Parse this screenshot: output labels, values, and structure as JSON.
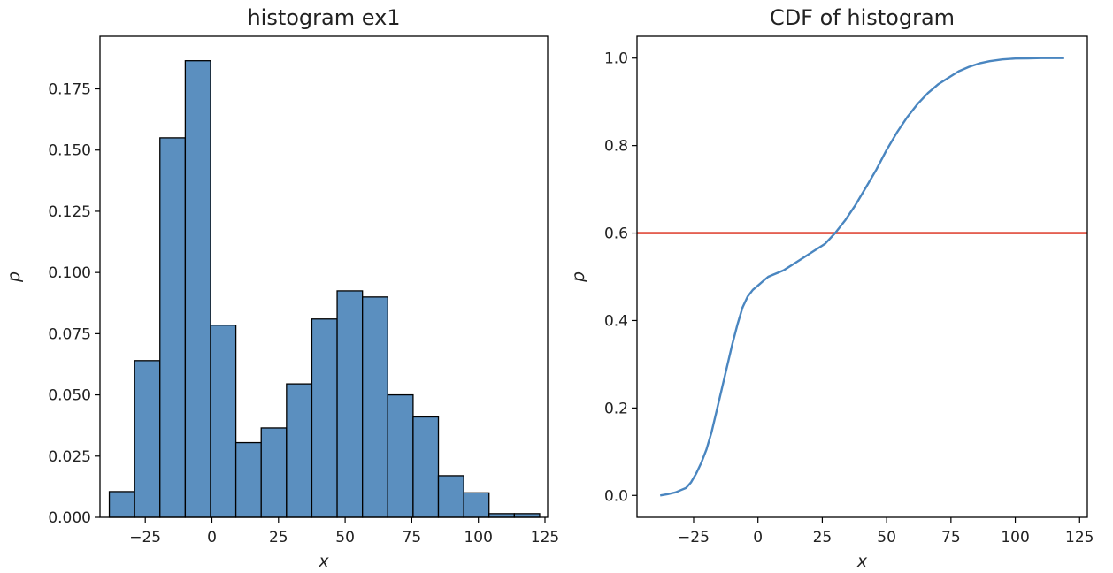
{
  "chart_data": [
    {
      "type": "bar",
      "title": "histogram ex1",
      "xlabel": "x",
      "ylabel": "p",
      "xlim": [
        -42,
        126
      ],
      "ylim": [
        0,
        0.1965
      ],
      "xticks": [
        -25,
        0,
        25,
        50,
        75,
        100,
        125
      ],
      "xtick_labels": [
        "−25",
        "0",
        "25",
        "50",
        "75",
        "100",
        "125"
      ],
      "yticks": [
        0,
        0.025,
        0.05,
        0.075,
        0.1,
        0.125,
        0.15,
        0.175
      ],
      "ytick_labels": [
        "0.000",
        "0.025",
        "0.050",
        "0.075",
        "0.100",
        "0.125",
        "0.150",
        "0.175"
      ],
      "grid": false,
      "bar_color": "#5b8fbf",
      "edge_color": "#000000",
      "bins": [
        {
          "x0": -38.5,
          "x1": -29.0,
          "value": 0.0105
        },
        {
          "x0": -29.0,
          "x1": -19.5,
          "value": 0.064
        },
        {
          "x0": -19.5,
          "x1": -10.0,
          "value": 0.155
        },
        {
          "x0": -10.0,
          "x1": -0.5,
          "value": 0.1865
        },
        {
          "x0": -0.5,
          "x1": 9.0,
          "value": 0.0785
        },
        {
          "x0": 9.0,
          "x1": 18.5,
          "value": 0.0305
        },
        {
          "x0": 18.5,
          "x1": 28.0,
          "value": 0.0365
        },
        {
          "x0": 28.0,
          "x1": 37.5,
          "value": 0.0545
        },
        {
          "x0": 37.5,
          "x1": 47.0,
          "value": 0.081
        },
        {
          "x0": 47.0,
          "x1": 56.5,
          "value": 0.0925
        },
        {
          "x0": 56.5,
          "x1": 66.0,
          "value": 0.09
        },
        {
          "x0": 66.0,
          "x1": 75.5,
          "value": 0.05
        },
        {
          "x0": 75.5,
          "x1": 85.0,
          "value": 0.041
        },
        {
          "x0": 85.0,
          "x1": 94.5,
          "value": 0.017
        },
        {
          "x0": 94.5,
          "x1": 104.0,
          "value": 0.01
        },
        {
          "x0": 104.0,
          "x1": 113.5,
          "value": 0.0015
        },
        {
          "x0": 113.5,
          "x1": 123.0,
          "value": 0.0015
        }
      ]
    },
    {
      "type": "line",
      "title": "CDF of histogram",
      "xlabel": "x",
      "ylabel": "p",
      "xlim": [
        -47,
        128
      ],
      "ylim": [
        -0.05,
        1.05
      ],
      "xticks": [
        -25,
        0,
        25,
        50,
        75,
        100,
        125
      ],
      "xtick_labels": [
        "−25",
        "0",
        "25",
        "50",
        "75",
        "100",
        "125"
      ],
      "yticks": [
        0,
        0.2,
        0.4,
        0.6,
        0.8,
        1.0
      ],
      "ytick_labels": [
        "0.0",
        "0.2",
        "0.4",
        "0.6",
        "0.8",
        "1.0"
      ],
      "grid": false,
      "line_color": "#4a86c0",
      "hline": {
        "y": 0.6,
        "color": "#e04a3a"
      },
      "x": [
        -38,
        -35,
        -32,
        -30,
        -28,
        -26,
        -24,
        -22,
        -20,
        -18,
        -16,
        -14,
        -12,
        -10,
        -8,
        -6,
        -4,
        -2,
        0,
        2,
        4,
        6,
        8,
        10,
        14,
        18,
        22,
        26,
        30,
        34,
        38,
        42,
        46,
        50,
        54,
        58,
        62,
        66,
        70,
        74,
        78,
        82,
        86,
        90,
        95,
        100,
        105,
        110,
        115,
        119
      ],
      "y": [
        0.0,
        0.003,
        0.007,
        0.012,
        0.017,
        0.03,
        0.05,
        0.075,
        0.105,
        0.145,
        0.195,
        0.245,
        0.295,
        0.345,
        0.39,
        0.43,
        0.455,
        0.47,
        0.48,
        0.49,
        0.5,
        0.505,
        0.51,
        0.515,
        0.53,
        0.545,
        0.56,
        0.575,
        0.6,
        0.63,
        0.665,
        0.705,
        0.745,
        0.79,
        0.83,
        0.865,
        0.895,
        0.92,
        0.94,
        0.955,
        0.97,
        0.98,
        0.988,
        0.993,
        0.997,
        0.999,
        0.9995,
        1.0,
        1.0,
        1.0
      ]
    }
  ]
}
